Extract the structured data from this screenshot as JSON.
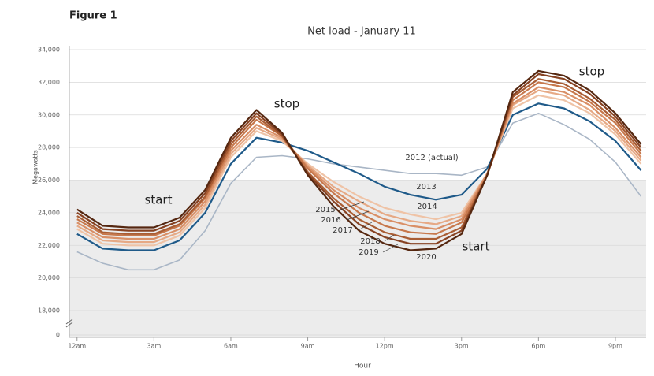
{
  "figure_label": "Figure 1",
  "chart_data": {
    "type": "line",
    "title": "Net load - January 11",
    "x_label": "Hour",
    "y_label": "Megawatts",
    "x": [
      0,
      1,
      2,
      3,
      4,
      5,
      6,
      7,
      8,
      9,
      10,
      11,
      12,
      13,
      14,
      15,
      16,
      17,
      18,
      19,
      20,
      21,
      22
    ],
    "xlim": [
      -0.3,
      22.2
    ],
    "xticks": [
      {
        "value": 0,
        "label": "12am"
      },
      {
        "value": 3,
        "label": "3am"
      },
      {
        "value": 6,
        "label": "6am"
      },
      {
        "value": 9,
        "label": "9am"
      },
      {
        "value": 12,
        "label": "12pm"
      },
      {
        "value": 15,
        "label": "3pm"
      },
      {
        "value": 18,
        "label": "6pm"
      },
      {
        "value": 21,
        "label": "9pm"
      }
    ],
    "ylim": [
      0,
      34000
    ],
    "yticks": [
      0,
      {
        "value": 18000,
        "label": "18,000"
      },
      {
        "value": 20000,
        "label": "20,000"
      },
      {
        "value": 22000,
        "label": "22,000"
      },
      {
        "value": 24000,
        "label": "24,000"
      },
      {
        "value": 26000,
        "label": "26,000"
      },
      {
        "value": 28000,
        "label": "28,000"
      },
      {
        "value": 30000,
        "label": "30,000"
      },
      {
        "value": 32000,
        "label": "32,000"
      },
      {
        "value": 34000,
        "label": "34,000"
      }
    ],
    "axis_break": true,
    "grid": true,
    "annotations": [
      "start",
      "stop",
      "start",
      "stop"
    ],
    "series": [
      {
        "name": "2012 (actual)",
        "color": "#a9b6c6",
        "values": [
          21600,
          20900,
          20500,
          20500,
          21100,
          22900,
          25800,
          27400,
          27500,
          27300,
          27000,
          26800,
          26600,
          26400,
          26400,
          26300,
          26800,
          29500,
          30100,
          29400,
          28500,
          27100,
          25000
        ]
      },
      {
        "name": "2013",
        "color": "#1f5a89",
        "values": [
          22700,
          21800,
          21700,
          21700,
          22300,
          24000,
          27000,
          28600,
          28300,
          27800,
          27100,
          26400,
          25600,
          25100,
          24800,
          25100,
          26700,
          30000,
          30700,
          30400,
          29600,
          28400,
          26600
        ]
      },
      {
        "name": "2014",
        "color": "#efc3a6",
        "values": [
          23000,
          22100,
          22000,
          22000,
          22600,
          24300,
          27400,
          29000,
          28400,
          27000,
          25900,
          25000,
          24300,
          23900,
          23600,
          24000,
          26400,
          30400,
          31200,
          30900,
          30100,
          28800,
          27000
        ]
      },
      {
        "name": "2015",
        "color": "#e6a985",
        "values": [
          23200,
          22300,
          22200,
          22200,
          22800,
          24500,
          27600,
          29200,
          28500,
          26900,
          25600,
          24700,
          23900,
          23500,
          23300,
          23800,
          26400,
          30600,
          31500,
          31200,
          30300,
          29000,
          27200
        ]
      },
      {
        "name": "2016",
        "color": "#d98f66",
        "values": [
          23400,
          22500,
          22400,
          22400,
          23000,
          24700,
          27800,
          29400,
          28600,
          26800,
          25400,
          24300,
          23600,
          23200,
          23000,
          23600,
          26400,
          30700,
          31700,
          31400,
          30600,
          29200,
          27400
        ]
      },
      {
        "name": "2017",
        "color": "#c7784c",
        "values": [
          23600,
          22700,
          22600,
          22600,
          23200,
          24900,
          28000,
          29700,
          28700,
          26700,
          25200,
          24000,
          23200,
          22800,
          22700,
          23400,
          26300,
          30900,
          32000,
          31700,
          30800,
          29500,
          27600
        ]
      },
      {
        "name": "2018",
        "color": "#a95d34",
        "values": [
          23800,
          22800,
          22700,
          22700,
          23300,
          25000,
          28200,
          29900,
          28700,
          26500,
          24900,
          23600,
          22800,
          22400,
          22400,
          23100,
          26300,
          31100,
          32200,
          31900,
          31000,
          29700,
          27800
        ]
      },
      {
        "name": "2019",
        "color": "#874222",
        "values": [
          24000,
          23000,
          22900,
          22900,
          23500,
          25200,
          28400,
          30100,
          28800,
          26400,
          24700,
          23300,
          22500,
          22100,
          22100,
          22900,
          26300,
          31200,
          32500,
          32200,
          31300,
          29900,
          28000
        ]
      },
      {
        "name": "2020",
        "color": "#552710",
        "values": [
          24200,
          23200,
          23100,
          23100,
          23700,
          25400,
          28600,
          30300,
          28900,
          26300,
          24400,
          22900,
          22100,
          21700,
          21800,
          22700,
          26300,
          31400,
          32700,
          32400,
          31500,
          30100,
          28200
        ]
      }
    ]
  }
}
